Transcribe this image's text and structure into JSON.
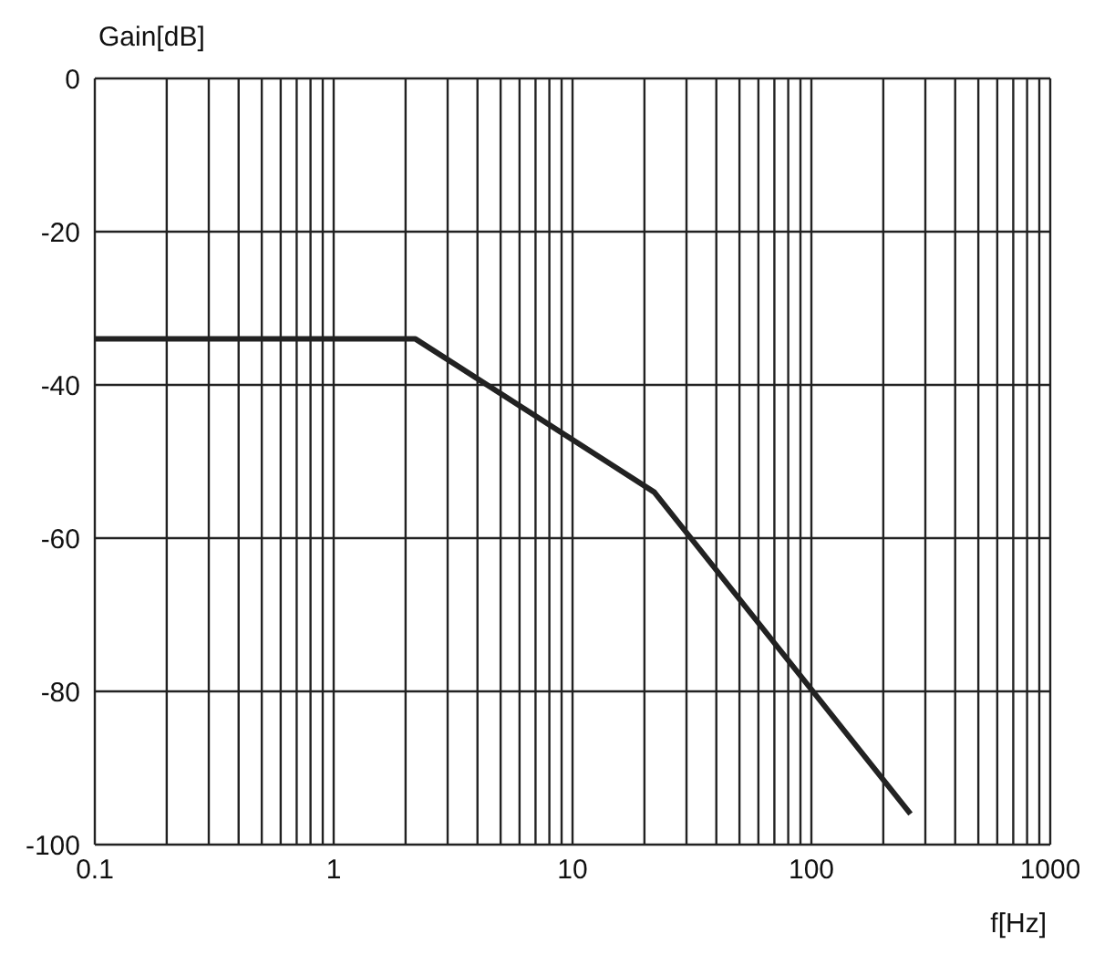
{
  "chart_data": {
    "type": "line",
    "xlabel": "f[Hz]",
    "ylabel": "Gain[dB]",
    "log": "x",
    "grid": true,
    "x": [
      0.1,
      2.2,
      22,
      260
    ],
    "series": [
      {
        "color": "#222222",
        "values": [
          -34,
          -34,
          -54,
          -96
        ]
      }
    ],
    "xlim": [
      0.1,
      1000
    ],
    "xticks": [
      0.1,
      {
        "value": 0.2,
        "label": null
      },
      {
        "value": 0.3,
        "label": null
      },
      {
        "value": 0.4,
        "label": null
      },
      {
        "value": 0.5,
        "label": null
      },
      {
        "value": 0.6,
        "label": null
      },
      {
        "value": 0.7,
        "label": null
      },
      {
        "value": 0.8,
        "label": null
      },
      {
        "value": 0.9,
        "label": null
      },
      1,
      {
        "value": 2,
        "label": null
      },
      {
        "value": 3,
        "label": null
      },
      {
        "value": 4,
        "label": null
      },
      {
        "value": 5,
        "label": null
      },
      {
        "value": 6,
        "label": null
      },
      {
        "value": 7,
        "label": null
      },
      {
        "value": 8,
        "label": null
      },
      {
        "value": 9,
        "label": null
      },
      10,
      {
        "value": 20,
        "label": null
      },
      {
        "value": 30,
        "label": null
      },
      {
        "value": 40,
        "label": null
      },
      {
        "value": 50,
        "label": null
      },
      {
        "value": 60,
        "label": null
      },
      {
        "value": 70,
        "label": null
      },
      {
        "value": 80,
        "label": null
      },
      {
        "value": 90,
        "label": null
      },
      100,
      {
        "value": 200,
        "label": null
      },
      {
        "value": 300,
        "label": null
      },
      {
        "value": 400,
        "label": null
      },
      {
        "value": 500,
        "label": null
      },
      {
        "value": 600,
        "label": null
      },
      {
        "value": 700,
        "label": null
      },
      {
        "value": 800,
        "label": null
      },
      {
        "value": 900,
        "label": null
      },
      1000
    ],
    "ylim": [
      -100,
      0
    ],
    "yticks": [
      -100,
      -80,
      -60,
      -40,
      -20,
      0
    ]
  }
}
